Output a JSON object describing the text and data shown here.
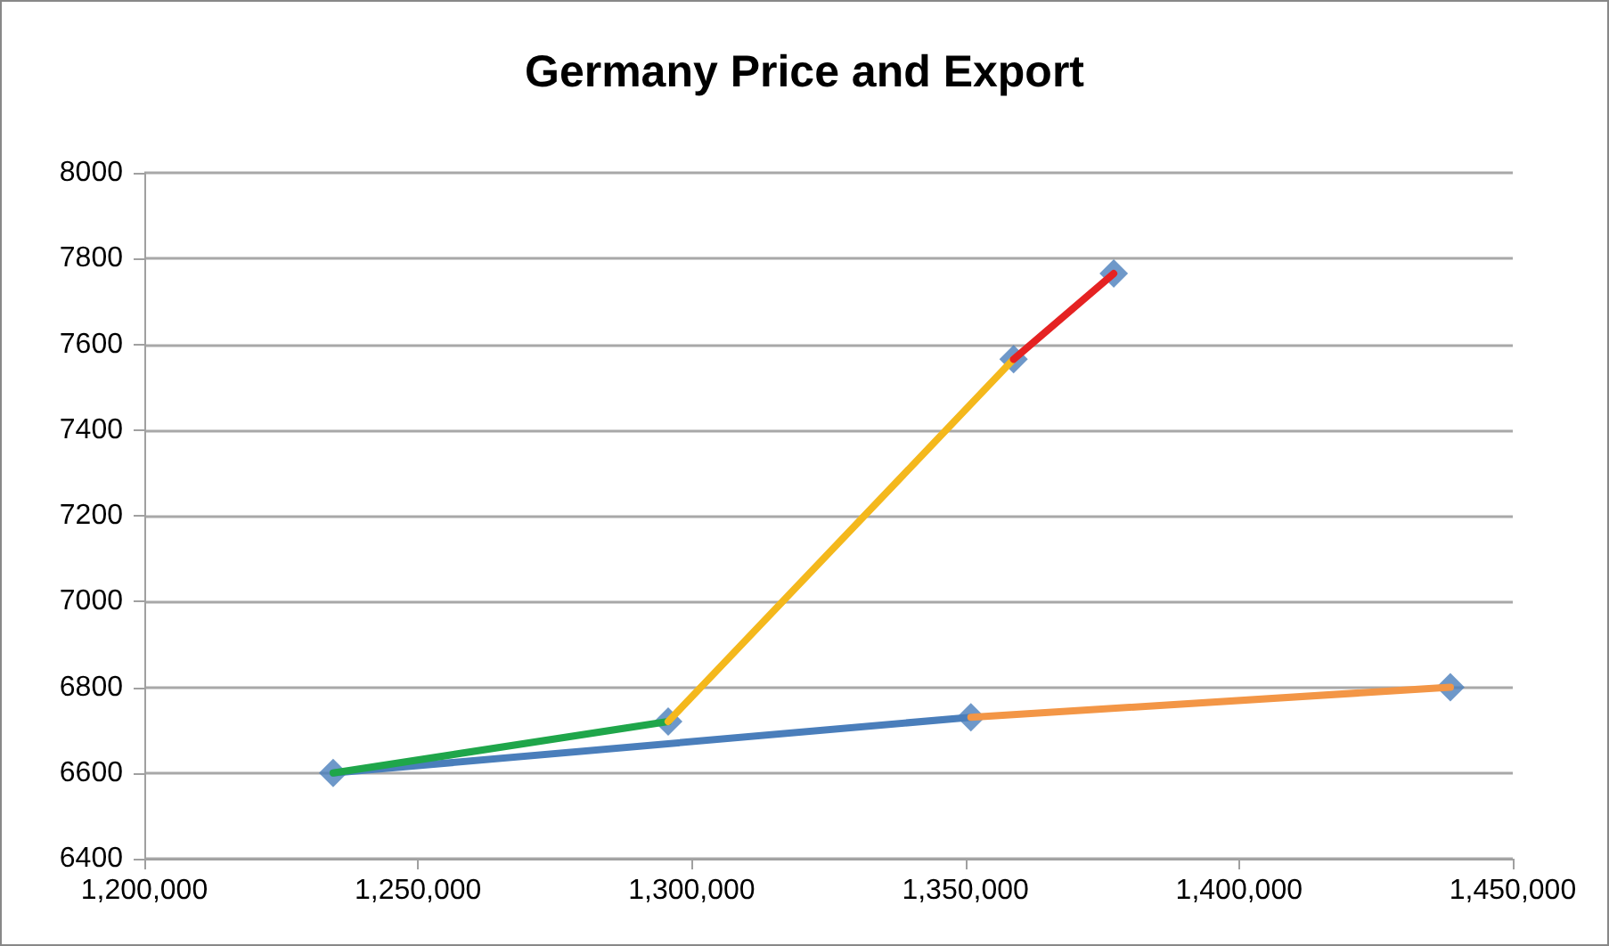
{
  "chart_data": {
    "type": "line",
    "title": "Germany Price and Export",
    "xlim": [
      1200000,
      1450000
    ],
    "xticks": [
      {
        "value": 1200000,
        "label": "1,200,000"
      },
      {
        "value": 1250000,
        "label": "1,250,000"
      },
      {
        "value": 1300000,
        "label": "1,300,000"
      },
      {
        "value": 1350000,
        "label": "1,350,000"
      },
      {
        "value": 1400000,
        "label": "1,400,000"
      },
      {
        "value": 1450000,
        "label": "1,450,000"
      }
    ],
    "ylim": [
      6400,
      8000
    ],
    "yticks": [
      6400,
      6600,
      6800,
      7000,
      7200,
      7400,
      7600,
      7800,
      8000
    ],
    "grid": "y",
    "line_style": "solid",
    "series": [
      {
        "marker": "none",
        "color": "#4a7ebb",
        "x": [
          1234500,
          1351000
        ],
        "values": [
          6600,
          6730
        ]
      },
      {
        "marker": "none",
        "color": "#1fa64a",
        "x": [
          1234500,
          1295700
        ],
        "values": [
          6600,
          6720
        ]
      },
      {
        "marker": "none",
        "color": "#f4b81c",
        "x": [
          1295700,
          1358800
        ],
        "values": [
          6720,
          7565
        ]
      },
      {
        "marker": "none",
        "color": "#e52222",
        "x": [
          1358800,
          1377100
        ],
        "values": [
          7565,
          7765
        ]
      },
      {
        "marker": "none",
        "color": "#f39646",
        "x": [
          1351000,
          1438600
        ],
        "values": [
          6730,
          6800
        ]
      },
      {
        "type": "scatter",
        "marker": "diamond",
        "color": "#4a7ebb",
        "x": [
          1234500,
          1295700,
          1351000,
          1358800,
          1377100,
          1438600
        ],
        "values": [
          6600,
          6720,
          6730,
          7565,
          7765,
          6800
        ]
      }
    ]
  }
}
